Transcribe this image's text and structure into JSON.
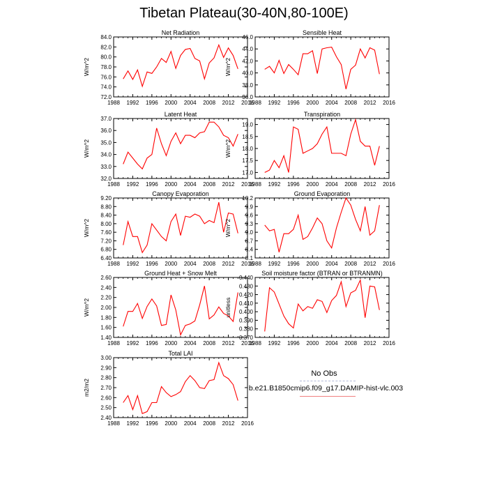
{
  "title": "Tibetan Plateau(30-40N,80-100E)",
  "legend": {
    "obs_label": "No Obs",
    "model_label": "b.e21.B1850cmip6.f09_g17.DAMIP-hist-vlc.003",
    "obs_color": "#b0b8d8",
    "model_color": "#f08080"
  },
  "line_color": "#ff0000",
  "chart_data": [
    {
      "type": "line",
      "title": "Net Radiation",
      "ylabel": "W/m^2",
      "xlim": [
        1988,
        2016
      ],
      "xticks": [
        1988,
        1992,
        1996,
        2000,
        2004,
        2008,
        2012,
        2016
      ],
      "ylim": [
        72,
        84
      ],
      "yticks": [
        "72.0",
        "74.0",
        "76.0",
        "78.0",
        "80.0",
        "82.0",
        "84.0"
      ],
      "x": [
        1990,
        1991,
        1992,
        1993,
        1994,
        1995,
        1996,
        1997,
        1998,
        1999,
        2000,
        2001,
        2002,
        2003,
        2004,
        2005,
        2006,
        2007,
        2008,
        2009,
        2010,
        2011,
        2012,
        2013,
        2014
      ],
      "values": [
        75.6,
        77.2,
        75.5,
        77.4,
        74.1,
        77.0,
        76.7,
        78.0,
        79.7,
        78.9,
        81.1,
        77.7,
        80.3,
        81.5,
        81.7,
        79.7,
        79.2,
        75.6,
        78.8,
        79.8,
        82.4,
        79.9,
        81.8,
        80.3,
        77.6
      ]
    },
    {
      "type": "line",
      "title": "Sensible Heat",
      "ylabel": "W/m^2",
      "xlim": [
        1988,
        2016
      ],
      "xticks": [
        1988,
        1992,
        1996,
        2000,
        2004,
        2008,
        2012,
        2016
      ],
      "ylim": [
        36,
        46
      ],
      "yticks": [
        "36.0",
        "38.0",
        "40.0",
        "42.0",
        "44.0",
        "46.0"
      ],
      "x": [
        1990,
        1991,
        1992,
        1993,
        1994,
        1995,
        1996,
        1997,
        1998,
        1999,
        2000,
        2001,
        2002,
        2003,
        2004,
        2005,
        2006,
        2007,
        2008,
        2009,
        2010,
        2011,
        2012,
        2013,
        2014
      ],
      "values": [
        40.6,
        41.1,
        40.0,
        42.1,
        39.9,
        41.4,
        40.6,
        39.7,
        43.2,
        43.2,
        43.7,
        39.9,
        44.0,
        44.2,
        44.3,
        42.7,
        41.4,
        37.3,
        40.6,
        41.3,
        44.0,
        42.5,
        44.2,
        43.8,
        39.8
      ]
    },
    {
      "type": "line",
      "title": "Latent Heat",
      "ylabel": "W/m^2",
      "xlim": [
        1988,
        2016
      ],
      "xticks": [
        1988,
        1992,
        1996,
        2000,
        2004,
        2008,
        2012,
        2016
      ],
      "ylim": [
        32,
        37
      ],
      "yticks": [
        "32.0",
        "33.0",
        "34.0",
        "35.0",
        "36.0",
        "37.0"
      ],
      "x": [
        1990,
        1991,
        1992,
        1993,
        1994,
        1995,
        1996,
        1997,
        1998,
        1999,
        2000,
        2001,
        2002,
        2003,
        2004,
        2005,
        2006,
        2007,
        2008,
        2009,
        2010,
        2011,
        2012,
        2013,
        2014
      ],
      "values": [
        33.2,
        34.2,
        33.7,
        33.2,
        32.8,
        33.7,
        34.0,
        36.2,
        34.9,
        33.9,
        35.1,
        35.8,
        34.9,
        35.6,
        35.6,
        35.4,
        35.8,
        35.9,
        36.7,
        36.7,
        36.3,
        35.6,
        35.4,
        34.7,
        35.7
      ]
    },
    {
      "type": "line",
      "title": "Transpiration",
      "ylabel": "W/m^2",
      "xlim": [
        1988,
        2016
      ],
      "xticks": [
        1988,
        1992,
        1996,
        2000,
        2004,
        2008,
        2012,
        2016
      ],
      "ylim": [
        16.75,
        19.25
      ],
      "yticks": [
        "17.0",
        "17.5",
        "18.0",
        "18.5",
        "19.0"
      ],
      "x": [
        1990,
        1991,
        1992,
        1993,
        1994,
        1995,
        1996,
        1997,
        1998,
        1999,
        2000,
        2001,
        2002,
        2003,
        2004,
        2005,
        2006,
        2007,
        2008,
        2009,
        2010,
        2011,
        2012,
        2013,
        2014
      ],
      "values": [
        17.0,
        17.1,
        17.5,
        17.2,
        17.7,
        17.0,
        18.9,
        18.8,
        17.8,
        17.9,
        18.0,
        18.2,
        18.6,
        18.9,
        17.8,
        17.8,
        17.8,
        17.7,
        18.6,
        19.2,
        18.3,
        18.1,
        18.1,
        17.3,
        18.1
      ]
    },
    {
      "type": "line",
      "title": "Canopy Evaporation",
      "ylabel": "W/m^2",
      "xlim": [
        1988,
        2016
      ],
      "xticks": [
        1988,
        1992,
        1996,
        2000,
        2004,
        2008,
        2012,
        2016
      ],
      "ylim": [
        6.4,
        9.2
      ],
      "yticks": [
        "6.40",
        "6.80",
        "7.20",
        "7.60",
        "8.00",
        "8.40",
        "8.80",
        "9.20"
      ],
      "x": [
        1990,
        1991,
        1992,
        1993,
        1994,
        1995,
        1996,
        1997,
        1998,
        1999,
        2000,
        2001,
        2002,
        2003,
        2004,
        2005,
        2006,
        2007,
        2008,
        2009,
        2010,
        2011,
        2012,
        2013,
        2014
      ],
      "values": [
        7.0,
        8.1,
        7.4,
        7.4,
        6.65,
        7.0,
        8.0,
        7.7,
        7.4,
        7.2,
        8.1,
        8.45,
        7.45,
        8.35,
        8.3,
        8.45,
        8.35,
        8.0,
        8.15,
        8.05,
        9.0,
        7.6,
        8.5,
        8.45,
        7.55
      ]
    },
    {
      "type": "line",
      "title": "Ground Evaporation",
      "ylabel": "W/m^2",
      "xlim": [
        1988,
        2016
      ],
      "xticks": [
        1988,
        1992,
        1996,
        2000,
        2004,
        2008,
        2012,
        2016
      ],
      "ylim": [
        8.1,
        10.2
      ],
      "yticks": [
        "8.1",
        "8.4",
        "8.7",
        "9.0",
        "9.3",
        "9.6",
        "9.9",
        "10.2"
      ],
      "x": [
        1990,
        1991,
        1992,
        1993,
        1994,
        1995,
        1996,
        1997,
        1998,
        1999,
        2000,
        2001,
        2002,
        2003,
        2004,
        2005,
        2006,
        2007,
        2008,
        2009,
        2010,
        2011,
        2012,
        2013,
        2014
      ],
      "values": [
        9.25,
        9.05,
        9.1,
        8.3,
        8.95,
        8.95,
        9.1,
        9.6,
        8.75,
        8.85,
        9.15,
        9.5,
        9.3,
        8.7,
        8.45,
        9.15,
        9.7,
        10.2,
        9.95,
        9.45,
        9.05,
        9.9,
        8.9,
        9.05,
        9.95
      ]
    },
    {
      "type": "line",
      "title": "Ground Heat + Snow Melt",
      "ylabel": "W/m^2",
      "xlim": [
        1988,
        2016
      ],
      "xticks": [
        1988,
        1992,
        1996,
        2000,
        2004,
        2008,
        2012,
        2016
      ],
      "ylim": [
        1.4,
        2.6
      ],
      "yticks": [
        "1.40",
        "1.60",
        "1.80",
        "2.00",
        "2.20",
        "2.40",
        "2.60"
      ],
      "x": [
        1990,
        1991,
        1992,
        1993,
        1994,
        1995,
        1996,
        1997,
        1998,
        1999,
        2000,
        2001,
        2002,
        2003,
        2004,
        2005,
        2006,
        2007,
        2008,
        2009,
        2010,
        2011,
        2012,
        2013,
        2014
      ],
      "values": [
        1.62,
        1.92,
        1.92,
        2.08,
        1.78,
        2.02,
        2.17,
        2.03,
        1.64,
        1.66,
        2.25,
        1.95,
        1.45,
        1.64,
        1.67,
        1.73,
        2.05,
        2.43,
        1.77,
        1.85,
        2.01,
        1.88,
        1.83,
        1.72,
        2.3
      ]
    },
    {
      "type": "line",
      "title": "Soil moisture factor (BTRAN or BTRANMN)",
      "ylabel": "unitless",
      "xlim": [
        1988,
        2016
      ],
      "xticks": [
        1988,
        1992,
        1996,
        2000,
        2004,
        2008,
        2012,
        2016
      ],
      "ylim": [
        0.37,
        0.44
      ],
      "yticks": [
        "0.370",
        "0.380",
        "0.390",
        "0.400",
        "0.410",
        "0.420",
        "0.430",
        "0.440"
      ],
      "x": [
        1990,
        1991,
        1992,
        1993,
        1994,
        1995,
        1996,
        1997,
        1998,
        1999,
        2000,
        2001,
        2002,
        2003,
        2004,
        2005,
        2006,
        2007,
        2008,
        2009,
        2010,
        2011,
        2012,
        2013,
        2014
      ],
      "values": [
        0.377,
        0.428,
        0.423,
        0.409,
        0.395,
        0.386,
        0.381,
        0.409,
        0.401,
        0.406,
        0.404,
        0.414,
        0.412,
        0.399,
        0.413,
        0.419,
        0.435,
        0.406,
        0.422,
        0.425,
        0.437,
        0.393,
        0.43,
        0.429,
        0.402
      ]
    },
    {
      "type": "line",
      "title": "Total LAI",
      "ylabel": "m2/m2",
      "xlim": [
        1988,
        2016
      ],
      "xticks": [
        1988,
        1992,
        1996,
        2000,
        2004,
        2008,
        2012,
        2016
      ],
      "ylim": [
        2.4,
        3.0
      ],
      "yticks": [
        "2.40",
        "2.50",
        "2.60",
        "2.70",
        "2.80",
        "2.90",
        "3.00"
      ],
      "x": [
        1990,
        1991,
        1992,
        1993,
        1994,
        1995,
        1996,
        1997,
        1998,
        1999,
        2000,
        2001,
        2002,
        2003,
        2004,
        2005,
        2006,
        2007,
        2008,
        2009,
        2010,
        2011,
        2012,
        2013,
        2014
      ],
      "values": [
        2.55,
        2.62,
        2.48,
        2.62,
        2.44,
        2.46,
        2.55,
        2.55,
        2.71,
        2.65,
        2.61,
        2.63,
        2.66,
        2.76,
        2.82,
        2.77,
        2.7,
        2.69,
        2.77,
        2.78,
        2.95,
        2.82,
        2.79,
        2.73,
        2.57
      ]
    }
  ]
}
